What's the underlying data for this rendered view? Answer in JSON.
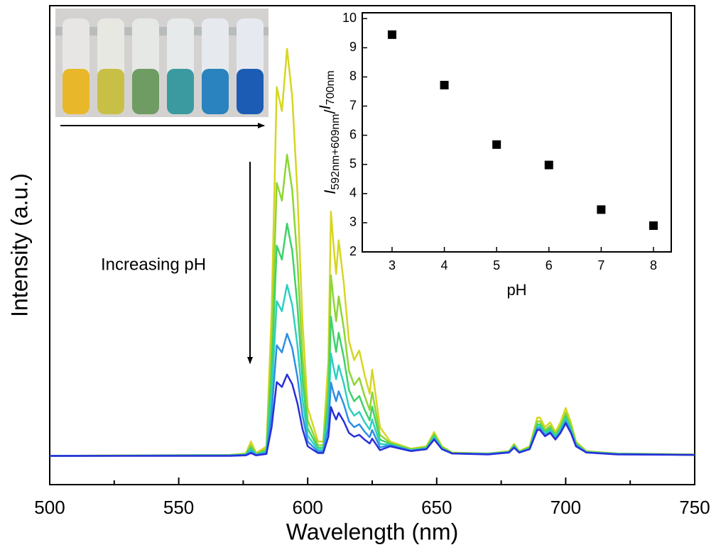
{
  "chart_data": [
    {
      "type": "line",
      "xlabel": "Wavelength (nm)",
      "ylabel": "Intensity (a.u.)",
      "annotation": "Increasing pH",
      "xlim": [
        500,
        750
      ],
      "ylim": [
        0,
        100
      ],
      "xticks": [
        500,
        550,
        600,
        650,
        700,
        750
      ],
      "xminorticks": [
        525,
        575,
        625,
        675,
        725
      ],
      "x": [
        500,
        570,
        576,
        578,
        580,
        584,
        586,
        588,
        590,
        592,
        594,
        596,
        598,
        600,
        604,
        606,
        608,
        609,
        610,
        611,
        612,
        614,
        616,
        618,
        620,
        622,
        624,
        625,
        626,
        628,
        632,
        640,
        646,
        649,
        652,
        656,
        670,
        678,
        680,
        682,
        686,
        689,
        690,
        692,
        694,
        696,
        698,
        700,
        702,
        704,
        708,
        720,
        750
      ],
      "series": [
        {
          "color": "#d6d622",
          "values": [
            6,
            6.2,
            6.5,
            9,
            6.6,
            8,
            36,
            83,
            78,
            91,
            81,
            61,
            34,
            16,
            9,
            9,
            26,
            57,
            50,
            44,
            51,
            42,
            30,
            26,
            28,
            23,
            19,
            24,
            20,
            12,
            9,
            7.5,
            8,
            11,
            8,
            6.7,
            6.5,
            7,
            8.5,
            7,
            8,
            14,
            14,
            12,
            13,
            11,
            13,
            16,
            13,
            9,
            7,
            6.5,
            6.3
          ]
        },
        {
          "color": "#8ed634",
          "values": [
            6,
            6.2,
            6.4,
            8.2,
            6.4,
            7.5,
            28.2,
            63,
            59.3,
            68.9,
            61.5,
            46.7,
            26.7,
            13.4,
            8.2,
            8.2,
            20.8,
            43.7,
            38.6,
            34.1,
            39.3,
            32.6,
            23.8,
            20.8,
            22.3,
            18.6,
            15.6,
            19.3,
            16.4,
            10.4,
            8.7,
            7.4,
            7.8,
            10.5,
            7.8,
            6.6,
            6.5,
            6.9,
            8.3,
            6.9,
            7.8,
            13.2,
            13.2,
            11.4,
            12.3,
            10.5,
            12.3,
            15,
            12.3,
            8.7,
            6.9,
            6.5,
            6.3
          ]
        },
        {
          "color": "#3ed26a",
          "values": [
            6,
            6.1,
            6.3,
            7.7,
            6.3,
            7.1,
            23.1,
            49.9,
            47,
            54.5,
            48.8,
            37.4,
            22,
            11.7,
            7.7,
            7.7,
            17.4,
            35.1,
            31.1,
            27.7,
            31.7,
            26.5,
            19.7,
            17.4,
            18.5,
            15.7,
            13.4,
            16.3,
            14,
            9.4,
            8.5,
            7.2,
            7.7,
            10.2,
            7.7,
            6.6,
            6.4,
            6.8,
            8.1,
            6.8,
            7.7,
            12.6,
            12.6,
            11,
            11.8,
            10.2,
            11.8,
            14.3,
            11.8,
            8.5,
            6.8,
            6.4,
            6.2
          ]
        },
        {
          "color": "#2ecfc0",
          "values": [
            6,
            6.1,
            6.2,
            7.3,
            6.3,
            6.8,
            18.6,
            38.3,
            36.2,
            41.7,
            37.5,
            29.1,
            17.8,
            10.2,
            7.3,
            7.3,
            14.4,
            27.4,
            24.5,
            22,
            24.9,
            21.1,
            16.1,
            14.4,
            15.2,
            13.1,
            11.5,
            13.6,
            11.9,
            8.5,
            8.3,
            7.2,
            7.5,
            9.9,
            7.5,
            6.5,
            6.4,
            6.8,
            7.9,
            6.8,
            7.5,
            12.2,
            12.2,
            10.6,
            11.4,
            9.9,
            11.4,
            13.7,
            11.4,
            8.3,
            6.8,
            6.4,
            6.2
          ]
        },
        {
          "color": "#2e8ee6",
          "values": [
            6,
            6.1,
            6.2,
            6.9,
            6.2,
            6.6,
            15,
            29.1,
            27.6,
            31.5,
            28.5,
            22.5,
            14.4,
            9,
            6.9,
            6.9,
            12,
            21.3,
            19.2,
            17.4,
            19.5,
            16.8,
            13.2,
            12,
            12.6,
            11.1,
            9.9,
            11.4,
            10.2,
            7.8,
            8.2,
            7.1,
            7.4,
            9.6,
            7.4,
            6.5,
            6.4,
            6.7,
            7.8,
            6.7,
            7.4,
            11.8,
            11.8,
            10.3,
            11,
            9.6,
            11,
            13.2,
            11,
            8.2,
            6.7,
            6.4,
            6.2
          ]
        },
        {
          "color": "#2a2ed8",
          "values": [
            6,
            6,
            6.1,
            6.6,
            6.1,
            6.4,
            12,
            21.4,
            20.4,
            23,
            21,
            17,
            11.6,
            8,
            6.6,
            6.6,
            10,
            16.2,
            14.8,
            13.6,
            15,
            13.2,
            10.8,
            10,
            10.4,
            9.4,
            8.6,
            9.6,
            8.8,
            7.2,
            8,
            7,
            7.4,
            9.4,
            7.4,
            6.5,
            6.3,
            6.7,
            7.7,
            6.7,
            7.4,
            11.4,
            11.4,
            10.1,
            10.8,
            9.4,
            10.8,
            12.8,
            10.8,
            8,
            6.7,
            6.3,
            6.2
          ]
        }
      ]
    },
    {
      "type": "scatter",
      "xlabel": "pH",
      "ylabel": [
        "I",
        "592nm+609nm",
        "/",
        "I",
        "700nm"
      ],
      "xlim": [
        2.43,
        8.34
      ],
      "ylim": [
        2,
        10.2
      ],
      "xticks": [
        3,
        4,
        5,
        6,
        7,
        8
      ],
      "yticks": [
        2,
        3,
        4,
        5,
        6,
        7,
        8,
        9,
        10
      ],
      "color": "#000000",
      "x": [
        3,
        4,
        5,
        6,
        7,
        8
      ],
      "values": [
        9.45,
        7.72,
        5.68,
        4.98,
        3.45,
        2.9
      ]
    }
  ]
}
